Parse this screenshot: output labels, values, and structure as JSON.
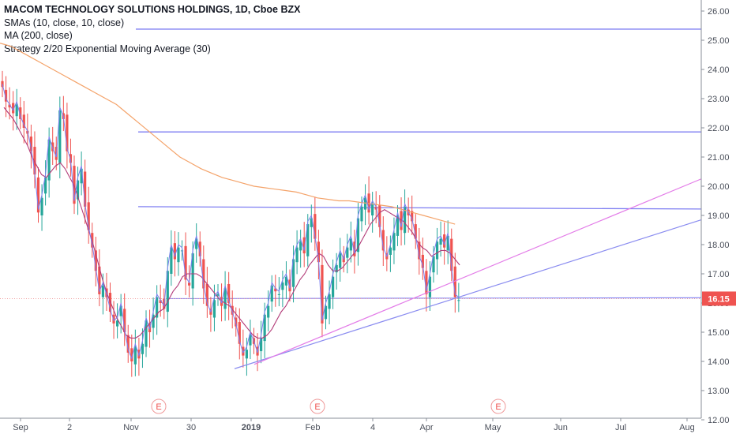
{
  "legend": {
    "title": "MACOM TECHNOLOGY SOLUTIONS HOLDINGS, 1D, Cboe BZX",
    "line1": "SMAs (10, close, 10, close)",
    "line2": "MA (200, close)",
    "line3": "Strategy 2/20 Exponential Moving Average (30)"
  },
  "chart_data": {
    "type": "candlestick",
    "title": "MACOM TECHNOLOGY SOLUTIONS HOLDINGS, 1D, Cboe BZX",
    "x_ticks": [
      "Sep",
      "2",
      "Nov",
      "30",
      "2019",
      "Feb",
      "4",
      "Apr",
      "May",
      "Jun",
      "Jul",
      "Aug"
    ],
    "y_ticks": [
      "26.00",
      "25.00",
      "24.00",
      "23.00",
      "22.00",
      "21.00",
      "20.00",
      "19.00",
      "18.00",
      "17.00",
      "16.00",
      "15.00",
      "14.00",
      "13.00",
      "12.00"
    ],
    "ylim": [
      12.0,
      26.2
    ],
    "last_price": "16.15",
    "earnings_marker": "E",
    "colors": {
      "up": "#26a69a",
      "down": "#ef5350",
      "ma200": "#f4a36a",
      "sma10": "#7b7ff0",
      "ema30": "#b23a78",
      "levels": "#7f7ff2",
      "trend1": "#e37ce8",
      "trend2": "#8a8cf0",
      "price_line": "#f0a0a0",
      "price_label": "#ef5350"
    },
    "closes": [
      23.4,
      22.9,
      22.7,
      22.5,
      22.8,
      22.3,
      22.0,
      21.8,
      21.2,
      20.4,
      19.1,
      19.6,
      20.3,
      21.6,
      21.2,
      20.9,
      22.6,
      22.3,
      21.2,
      20.8,
      19.4,
      20.2,
      20.6,
      19.3,
      18.5,
      17.9,
      17.1,
      16.3,
      16.6,
      16.2,
      15.7,
      15.3,
      15.4,
      15.9,
      15.0,
      14.3,
      14.0,
      14.5,
      14.1,
      14.6,
      15.4,
      15.0,
      15.6,
      16.2,
      16.0,
      15.8,
      17.1,
      17.9,
      17.5,
      17.9,
      17.8,
      16.8,
      16.6,
      17.7,
      18.2,
      17.6,
      16.5,
      15.9,
      15.6,
      16.1,
      16.3,
      15.9,
      16.5,
      16.0,
      15.6,
      15.2,
      14.6,
      14.2,
      14.4,
      14.9,
      14.6,
      14.2,
      14.8,
      15.6,
      15.9,
      16.6,
      16.4,
      16.3,
      16.7,
      16.9,
      16.4,
      17.5,
      17.9,
      18.1,
      17.7,
      18.7,
      18.9,
      18.2,
      17.4,
      15.3,
      15.9,
      16.3,
      16.9,
      17.3,
      17.7,
      17.4,
      17.9,
      18.2,
      17.6,
      18.9,
      19.3,
      19.6,
      19.1,
      19.4,
      19.2,
      18.6,
      17.8,
      17.5,
      17.9,
      18.4,
      19.0,
      18.5,
      19.3,
      19.0,
      18.8,
      18.2,
      17.5,
      17.2,
      16.3,
      16.9,
      17.6,
      18.1,
      18.2,
      17.9,
      18.3,
      17.1,
      16.2,
      16.1
    ],
    "ma200": [
      24.9,
      24.8,
      24.6,
      24.4,
      24.2,
      24.0,
      23.8,
      23.6,
      23.4,
      23.2,
      23.0,
      22.8,
      22.5,
      22.2,
      21.9,
      21.6,
      21.3,
      21.0,
      20.8,
      20.6,
      20.45,
      20.3,
      20.2,
      20.1,
      20.0,
      19.95,
      19.9,
      19.85,
      19.8,
      19.7,
      19.6,
      19.55,
      19.5,
      19.5,
      19.45,
      19.4,
      19.35,
      19.3,
      19.2,
      19.1,
      19.0,
      18.9,
      18.8,
      18.7
    ],
    "sma10": [
      22.7,
      22.5,
      22.3,
      22.0,
      21.7,
      21.4,
      21.0,
      20.7,
      20.4,
      20.3,
      20.5,
      20.7,
      20.8,
      20.6,
      20.3,
      20.0,
      19.5,
      19.0,
      18.5,
      18.0,
      17.4,
      16.8,
      16.3,
      15.9,
      15.5,
      15.2,
      14.9,
      14.8,
      14.8,
      14.9,
      15.1,
      15.3,
      15.5,
      15.7,
      15.8,
      16.1,
      16.4,
      16.6,
      16.9,
      17.0,
      17.0,
      17.0,
      16.9,
      16.7,
      16.5,
      16.3,
      16.1,
      16.0,
      15.9,
      15.7,
      15.5,
      15.3,
      15.1,
      14.9,
      14.8,
      14.8,
      14.9,
      15.1,
      15.4,
      15.7,
      15.9,
      16.2,
      16.5,
      16.8,
      17.0,
      17.3,
      17.5,
      17.7,
      17.6,
      17.3,
      17.1,
      17.1,
      17.2,
      17.4,
      17.6,
      17.8,
      18.1,
      18.4,
      18.7,
      18.9,
      19.1,
      19.2,
      19.1,
      19.0,
      18.9,
      18.8,
      18.6,
      18.4,
      18.1,
      17.9,
      17.8,
      17.6,
      17.7,
      17.8,
      17.8,
      17.7,
      17.5,
      17.3
    ]
  }
}
